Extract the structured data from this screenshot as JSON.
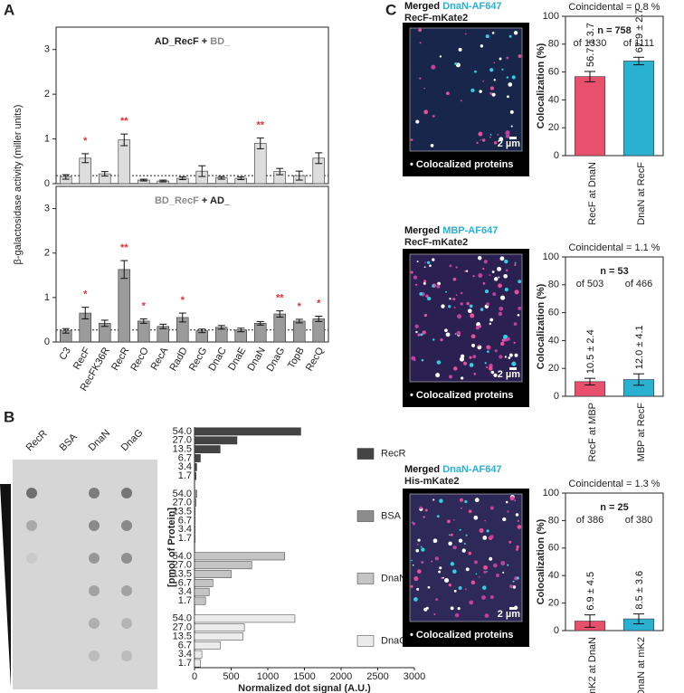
{
  "panel_labels": [
    "A",
    "B",
    "C"
  ],
  "chart_data": [
    {
      "type": "bar",
      "title_parts": [
        {
          "text": "AD_RecF + ",
          "color": "#222222"
        },
        {
          "text": "BD_",
          "color": "#8a8a8a"
        }
      ],
      "ylabel": "β-galactosidase activity (miller units)",
      "values": [
        0.15,
        0.57,
        0.22,
        0.98,
        0.08,
        0.06,
        0.12,
        0.28,
        0.13,
        0.12,
        0.9,
        0.27,
        0.18,
        0.57
      ],
      "errors": [
        0.05,
        0.1,
        0.05,
        0.13,
        0.02,
        0.02,
        0.03,
        0.12,
        0.03,
        0.03,
        0.12,
        0.07,
        0.1,
        0.12
      ],
      "annotations": [
        null,
        "*",
        null,
        "**",
        null,
        null,
        null,
        null,
        null,
        null,
        "**",
        null,
        null,
        null
      ],
      "annotation_color": "#e03030",
      "threshold": 0.18,
      "color": "#dddddd",
      "ylim": [
        0,
        3.5
      ],
      "yticks": [
        0,
        1,
        2,
        3
      ]
    },
    {
      "type": "bar",
      "title_parts": [
        {
          "text": "BD_RecF",
          "color": "#8a8a8a"
        },
        {
          "text": " + AD_",
          "color": "#222222"
        }
      ],
      "categories": [
        "C3",
        "RecF",
        "RecFK36R",
        "RecR",
        "RecO",
        "RecA",
        "RadD",
        "RecG",
        "DnaC",
        "DnaE",
        "DnaN",
        "DnaG",
        "TopB",
        "RecQ"
      ],
      "values": [
        0.25,
        0.65,
        0.42,
        1.63,
        0.47,
        0.35,
        0.55,
        0.25,
        0.33,
        0.27,
        0.42,
        0.63,
        0.47,
        0.52
      ],
      "errors": [
        0.05,
        0.13,
        0.07,
        0.2,
        0.05,
        0.05,
        0.1,
        0.04,
        0.04,
        0.04,
        0.04,
        0.07,
        0.04,
        0.06
      ],
      "annotations": [
        null,
        "*",
        null,
        "**",
        "*",
        null,
        "*",
        null,
        null,
        null,
        null,
        "**",
        "*",
        "*"
      ],
      "annotation_color": "#e03030",
      "threshold": 0.27,
      "color": "#9b9b9b",
      "ylim": [
        0,
        3.5
      ],
      "yticks": [
        0,
        1,
        2,
        3
      ]
    },
    {
      "type": "hbar",
      "blot_labels": [
        "RecR",
        "BSA",
        "DnaN",
        "DnaG"
      ],
      "ylabel": "[pmol of Protein]",
      "xlabel": "Normalized dot signal (A.U.)",
      "categories": [
        "54.0",
        "27.0",
        "13.5",
        "6.7",
        "3.4",
        "1.7"
      ],
      "series": [
        {
          "name": "RecR",
          "color": "#444444",
          "values": [
            1450,
            580,
            350,
            80,
            30,
            20
          ]
        },
        {
          "name": "BSA",
          "color": "#8c8c8c",
          "values": [
            30,
            20,
            10,
            10,
            10,
            10
          ]
        },
        {
          "name": "DnaN",
          "color": "#c4c4c4",
          "values": [
            1230,
            780,
            500,
            250,
            200,
            150
          ]
        },
        {
          "name": "DnaG",
          "color": "#ebebeb",
          "values": [
            1370,
            680,
            660,
            350,
            100,
            80
          ]
        }
      ],
      "xlim": [
        0,
        3000
      ],
      "xticks": [
        0,
        500,
        1000,
        1500,
        2000,
        2500,
        3000
      ]
    },
    {
      "type": "bar",
      "image_labels": [
        "Merged ",
        "DnaN-AF647",
        "RecF-mKate2"
      ],
      "image_label_colors": [
        "#111111",
        "#2ab0d0",
        "#e8506e"
      ],
      "scale_bar": "2 µm",
      "image_note": "• Colocalized proteins",
      "ylabel": "Colocalization (%)",
      "coincidental": "Coincidental = 0.8 %",
      "n": "n = 758",
      "totals": [
        "of 1330",
        "of 1111"
      ],
      "categories": [
        "RecF at DnaN",
        "DnaN at RecF"
      ],
      "values": [
        56.7,
        67.9
      ],
      "errors": [
        3.7,
        2.7
      ],
      "value_labels": [
        "56.7 ± 3.7",
        "67.9 ± 2.7"
      ],
      "colors": [
        "#e8506e",
        "#2ab0d0"
      ],
      "ylim": [
        0,
        100
      ],
      "yticks": [
        0,
        20,
        40,
        60,
        80,
        100
      ]
    },
    {
      "type": "bar",
      "image_labels": [
        "Merged ",
        "MBP-AF647",
        "RecF-mKate2"
      ],
      "image_label_colors": [
        "#111111",
        "#2ab0d0",
        "#e8506e"
      ],
      "scale_bar": "2 µm",
      "image_note": "• Colocalized proteins",
      "ylabel": "Colocalization (%)",
      "coincidental": "Coincidental = 1.1 %",
      "n": "n = 53",
      "totals": [
        "of 503",
        "of 466"
      ],
      "categories": [
        "RecF at MBP",
        "MBP at RecF"
      ],
      "values": [
        10.5,
        12.0
      ],
      "errors": [
        2.4,
        4.1
      ],
      "value_labels": [
        "10.5 ± 2.4",
        "12.0 ± 4.1"
      ],
      "colors": [
        "#e8506e",
        "#2ab0d0"
      ],
      "ylim": [
        0,
        100
      ],
      "yticks": [
        0,
        20,
        40,
        60,
        80,
        100
      ]
    },
    {
      "type": "bar",
      "image_labels": [
        "Merged ",
        "DnaN-AF647",
        "His-mKate2"
      ],
      "image_label_colors": [
        "#111111",
        "#2ab0d0",
        "#e8506e"
      ],
      "scale_bar": "2 µm",
      "image_note": "• Colocalized proteins",
      "ylabel": "Colocalization (%)",
      "coincidental": "Coincidental = 1.3 %",
      "n": "n = 25",
      "totals": [
        "of 386",
        "of 380"
      ],
      "categories": [
        "mK2 at DnaN",
        "DnaN at mK2"
      ],
      "values": [
        6.9,
        8.5
      ],
      "errors": [
        4.5,
        3.6
      ],
      "value_labels": [
        "6.9 ± 4.5",
        "8.5 ± 3.6"
      ],
      "colors": [
        "#e8506e",
        "#2ab0d0"
      ],
      "ylim": [
        0,
        100
      ],
      "yticks": [
        0,
        20,
        40,
        60,
        80,
        100
      ]
    }
  ]
}
